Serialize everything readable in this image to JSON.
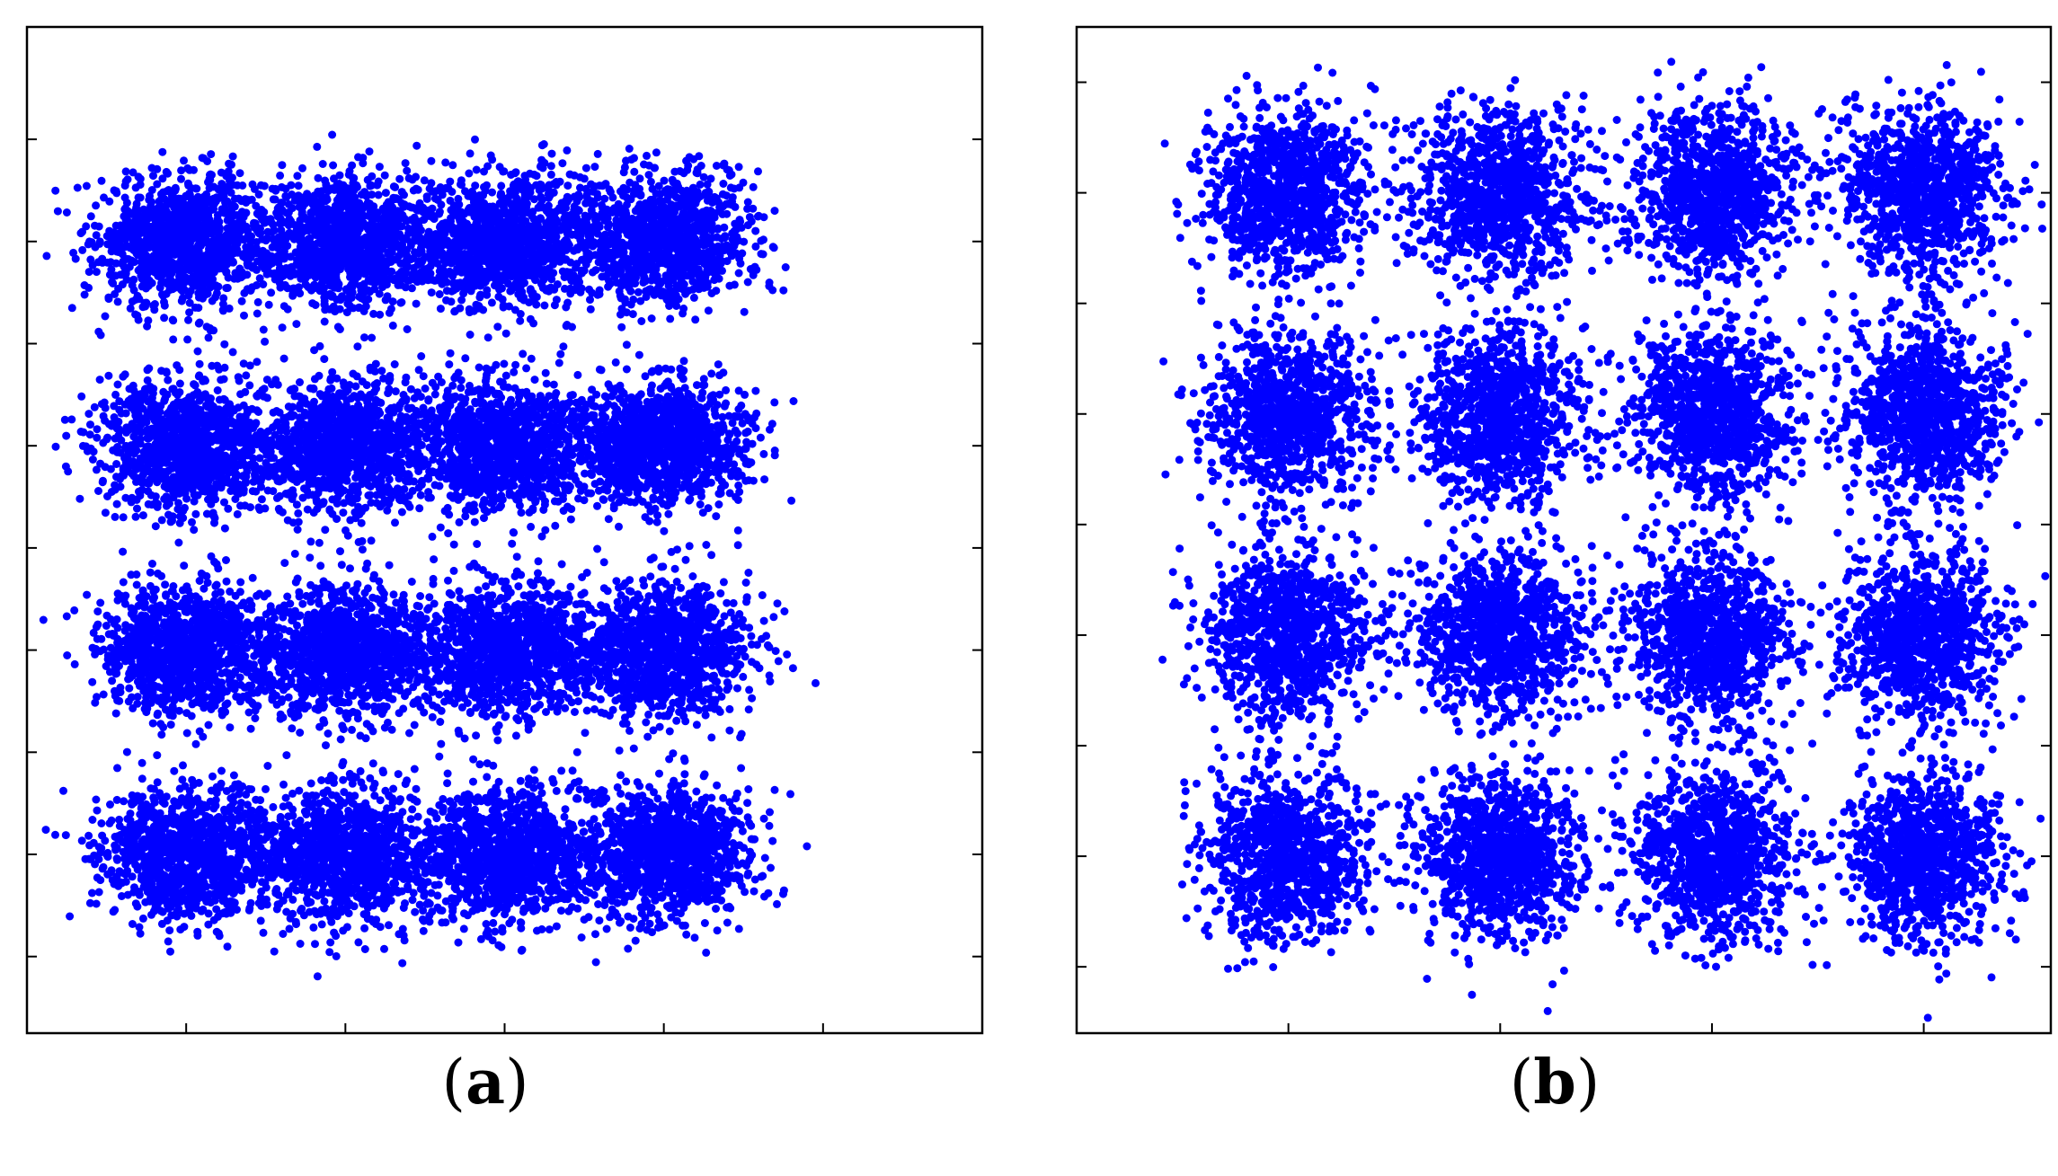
{
  "chart_data": [
    {
      "type": "scatter",
      "panel_label": "a",
      "marker_color": "#0000ff",
      "grid": false,
      "legend": "none",
      "cluster_grid": {
        "rows": 4,
        "cols": 4
      },
      "cluster_centers_x": [
        -3,
        -1,
        1,
        3
      ],
      "cluster_centers_y": [
        3,
        1,
        -1,
        -3
      ],
      "cluster_spread_x": 0.55,
      "cluster_spread_y": 0.32,
      "points_per_cluster": 1100,
      "xlim": [
        -5,
        7
      ],
      "ylim": [
        -4.75,
        5.1
      ],
      "xticks": [
        -3,
        -1,
        1,
        3,
        5
      ],
      "yticks": [
        4,
        3,
        2,
        1,
        0,
        -1,
        -2,
        -3,
        -4
      ],
      "xlabel": "",
      "ylabel": "",
      "title": ""
    },
    {
      "type": "scatter",
      "panel_label": "b",
      "marker_color": "#0000ff",
      "grid": false,
      "legend": "none",
      "cluster_grid": {
        "rows": 4,
        "cols": 4
      },
      "cluster_centers_x": [
        -3,
        -1,
        1,
        3
      ],
      "cluster_centers_y": [
        3,
        1,
        -1,
        -3
      ],
      "cluster_spread_x": 0.38,
      "cluster_spread_y": 0.38,
      "points_per_cluster": 1000,
      "xlim": [
        -5,
        4.2
      ],
      "ylim": [
        -4.6,
        4.5
      ],
      "xticks": [
        -3,
        -1,
        1,
        3
      ],
      "yticks": [
        4,
        3,
        2,
        1,
        0,
        -1,
        -2,
        -3,
        -4
      ],
      "xlabel": "",
      "ylabel": "",
      "title": ""
    }
  ],
  "captions": {
    "a": {
      "open": "(",
      "label": "a",
      "close": ")"
    },
    "b": {
      "open": "(",
      "label": "b",
      "close": ")"
    }
  }
}
